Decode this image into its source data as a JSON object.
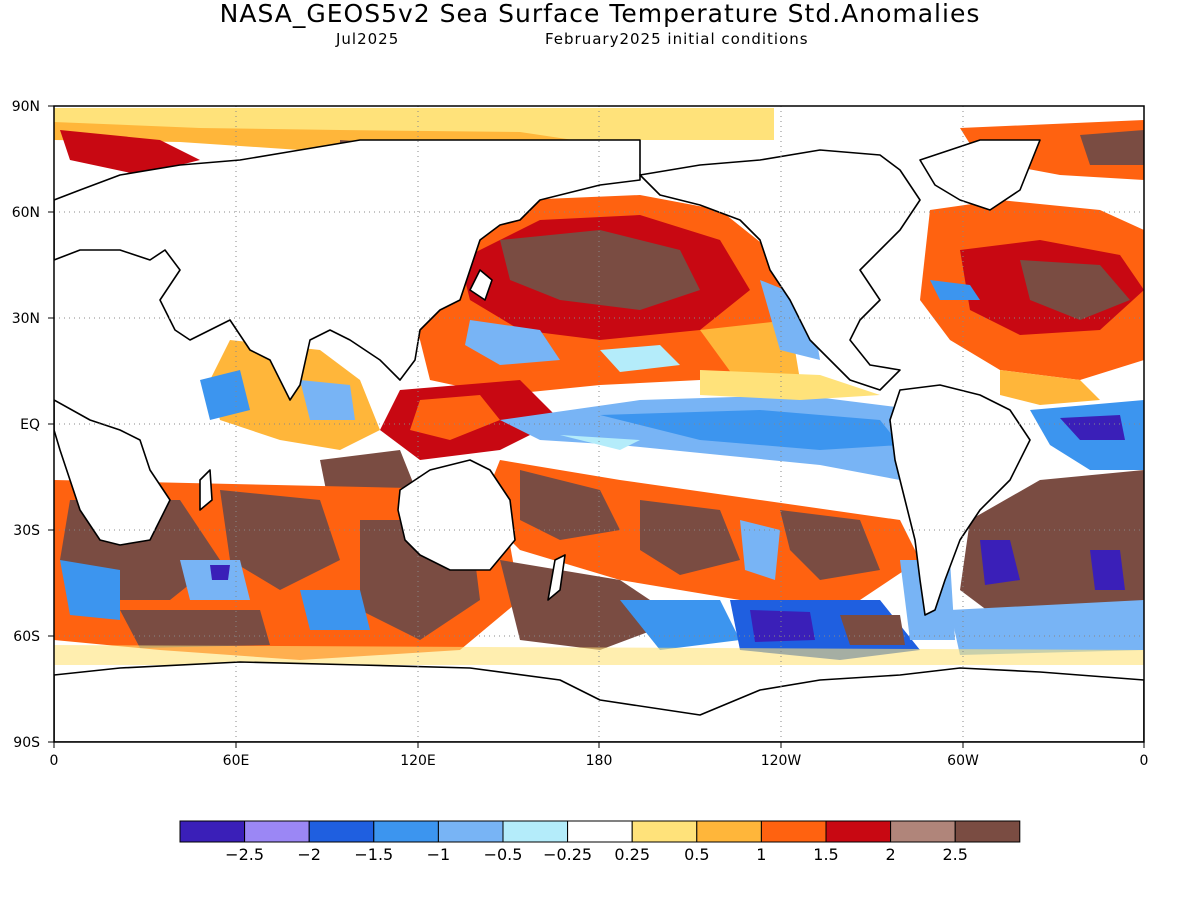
{
  "title": "NASA_GEOS5v2 Sea Surface Temperature Std.Anomalies",
  "subtitle_left": "Jul2025",
  "subtitle_right": "February2025 initial conditions",
  "lat_ticks": [
    "90N",
    "60N",
    "30N",
    "EQ",
    "30S",
    "60S",
    "90S"
  ],
  "lon_ticks": [
    "0",
    "60E",
    "120E",
    "180",
    "120W",
    "60W",
    "0"
  ],
  "colorbar": {
    "colors": [
      "#3a1fb8",
      "#9b87f5",
      "#1f5fe0",
      "#3c95ef",
      "#78b4f5",
      "#b4ecfa",
      "#ffffff",
      "#ffe27a",
      "#ffb63a",
      "#ff6210",
      "#c80812",
      "#b0857a",
      "#7a4c42"
    ],
    "labels": [
      "-2.5",
      "-2",
      "-1.5",
      "-1",
      "-0.5",
      "-0.25",
      "0.25",
      "0.5",
      "1",
      "1.5",
      "2",
      "2.5"
    ]
  },
  "map": {
    "projection": "equirectangular",
    "lon_range": [
      0,
      360
    ],
    "lat_range": [
      -90,
      90
    ],
    "grid": "dotted",
    "land_color": "#ffffff",
    "coast_color": "#000000"
  }
}
